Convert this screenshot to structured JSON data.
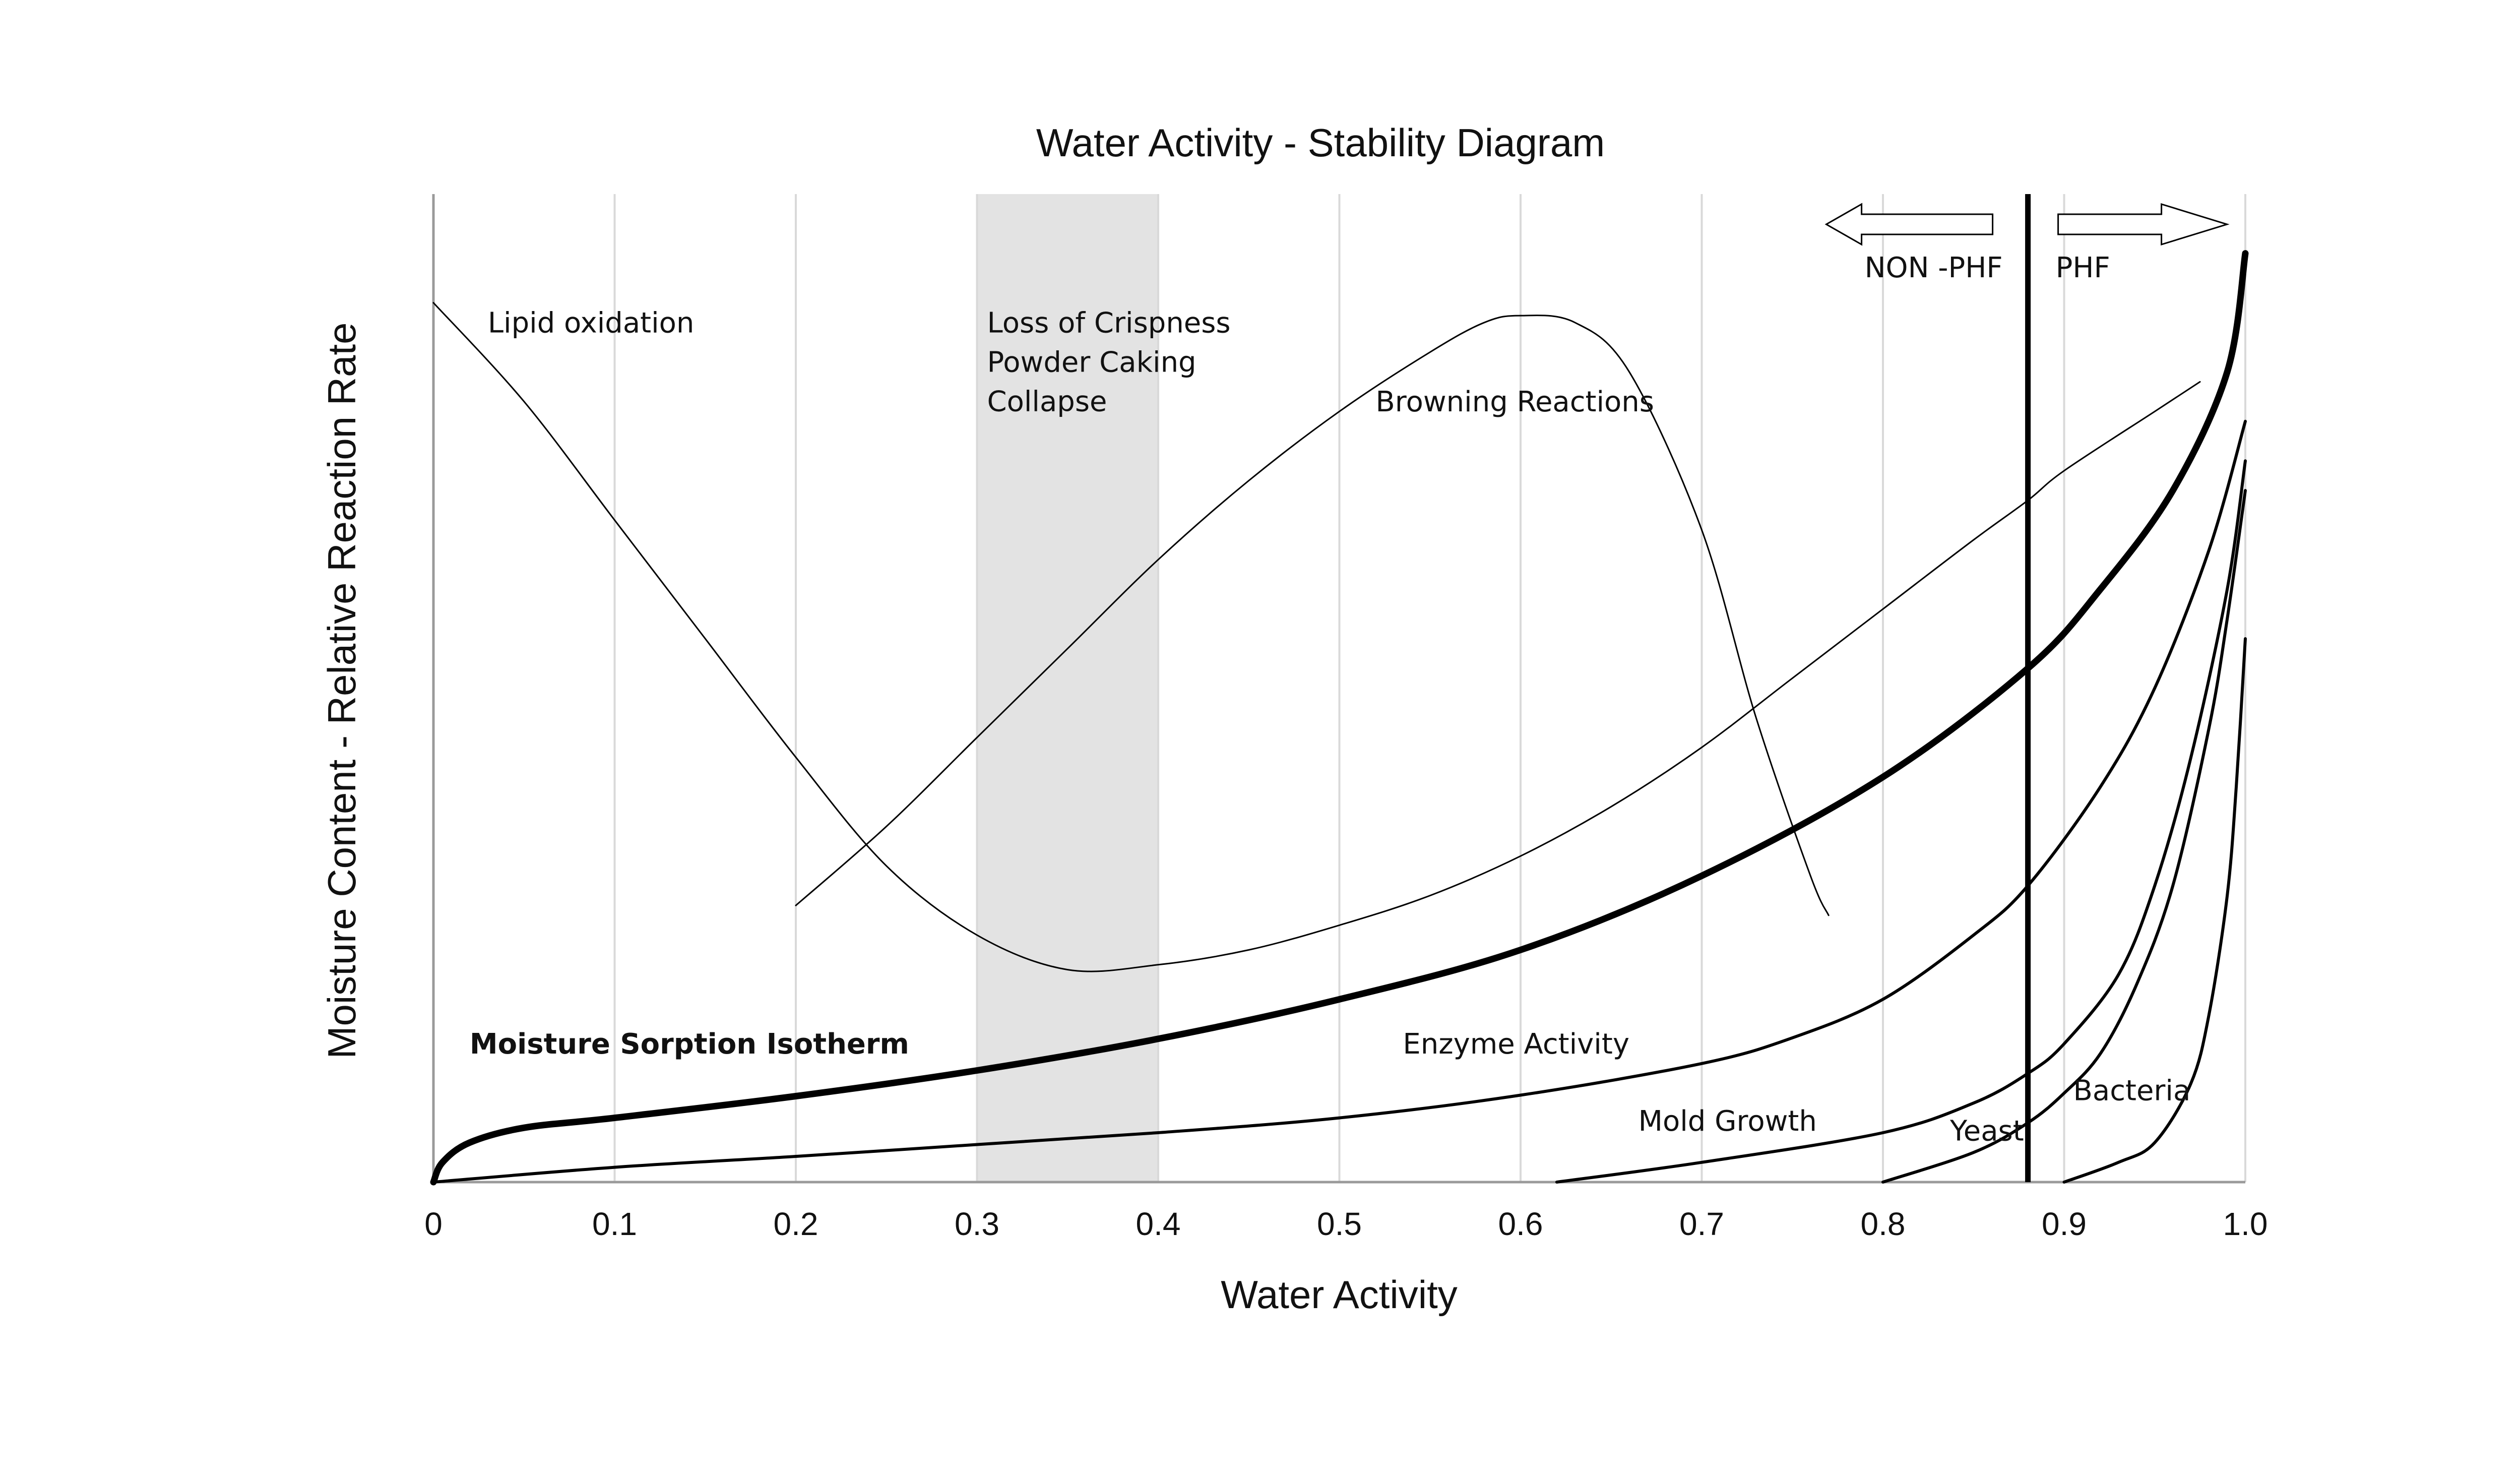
{
  "chart_data": {
    "type": "line",
    "title": "Water Activity - Stability Diagram",
    "xlabel": "Water Activity",
    "ylabel": "Moisture Content - Relative Reaction Rate",
    "xlim": [
      0,
      1.0
    ],
    "ylim": [
      0,
      1.0
    ],
    "x_ticks": [
      "0",
      "0.1",
      "0.2",
      "0.3",
      "0.4",
      "0.5",
      "0.6",
      "0.7",
      "0.8",
      "0.9",
      "1.0"
    ],
    "grid": "vertical",
    "shaded_band": {
      "x": [
        0.3,
        0.4
      ],
      "color": "#e3e3e3",
      "labels": [
        "Loss of Crispness",
        "Powder Caking",
        "Collapse"
      ]
    },
    "threshold": {
      "x": 0.88,
      "left_label": "NON -PHF",
      "right_label": "PHF"
    },
    "series": [
      {
        "name": "Lipid oxidation",
        "stroke": 3,
        "x": [
          0,
          0.05,
          0.1,
          0.15,
          0.2,
          0.25,
          0.3,
          0.35,
          0.4,
          0.45,
          0.5,
          0.55,
          0.6,
          0.65,
          0.7,
          0.75,
          0.8,
          0.85,
          0.88,
          0.9,
          0.95,
          0.975
        ],
        "y": [
          0.89,
          0.79,
          0.67,
          0.55,
          0.43,
          0.32,
          0.25,
          0.215,
          0.22,
          0.235,
          0.26,
          0.29,
          0.33,
          0.38,
          0.44,
          0.51,
          0.58,
          0.65,
          0.69,
          0.72,
          0.78,
          0.81
        ]
      },
      {
        "name": "Browning Reactions",
        "stroke": 3,
        "x": [
          0.2,
          0.25,
          0.3,
          0.35,
          0.4,
          0.45,
          0.5,
          0.55,
          0.58,
          0.6,
          0.63,
          0.66,
          0.7,
          0.73,
          0.76,
          0.77
        ],
        "y": [
          0.28,
          0.36,
          0.45,
          0.54,
          0.63,
          0.71,
          0.78,
          0.84,
          0.87,
          0.877,
          0.87,
          0.82,
          0.66,
          0.47,
          0.31,
          0.27
        ]
      },
      {
        "name": "Moisture Sorption Isotherm",
        "stroke": 13,
        "x": [
          0,
          0.005,
          0.02,
          0.05,
          0.1,
          0.2,
          0.3,
          0.4,
          0.5,
          0.6,
          0.7,
          0.8,
          0.88,
          0.92,
          0.96,
          0.99,
          1.0
        ],
        "y": [
          0,
          0.02,
          0.04,
          0.055,
          0.065,
          0.087,
          0.113,
          0.145,
          0.185,
          0.235,
          0.31,
          0.41,
          0.52,
          0.6,
          0.7,
          0.82,
          0.94
        ]
      },
      {
        "name": "Enzyme Activity",
        "stroke": 6,
        "x": [
          0,
          0.1,
          0.2,
          0.3,
          0.4,
          0.5,
          0.6,
          0.7,
          0.75,
          0.8,
          0.85,
          0.88,
          0.92,
          0.95,
          0.98,
          1.0
        ],
        "y": [
          0,
          0.015,
          0.026,
          0.038,
          0.05,
          0.065,
          0.088,
          0.12,
          0.146,
          0.185,
          0.25,
          0.3,
          0.4,
          0.5,
          0.64,
          0.77
        ]
      },
      {
        "name": "Mold Growth",
        "stroke": 6,
        "x": [
          0.62,
          0.7,
          0.8,
          0.85,
          0.88,
          0.9,
          0.93,
          0.95,
          0.97,
          0.99,
          1.0
        ],
        "y": [
          0,
          0.02,
          0.05,
          0.08,
          0.11,
          0.14,
          0.21,
          0.3,
          0.43,
          0.6,
          0.73
        ]
      },
      {
        "name": "Yeast",
        "stroke": 6,
        "x": [
          0.8,
          0.85,
          0.88,
          0.9,
          0.92,
          0.94,
          0.96,
          0.98,
          0.99,
          1.0
        ],
        "y": [
          0,
          0.03,
          0.06,
          0.09,
          0.13,
          0.2,
          0.3,
          0.46,
          0.57,
          0.7
        ]
      },
      {
        "name": "Bacteria",
        "stroke": 6,
        "x": [
          0.9,
          0.93,
          0.95,
          0.97,
          0.98,
          0.99,
          0.995,
          1.0
        ],
        "y": [
          0,
          0.02,
          0.04,
          0.1,
          0.17,
          0.29,
          0.4,
          0.55
        ]
      }
    ],
    "annotations": [
      {
        "text": "Lipid oxidation",
        "x": 0.03,
        "y": 0.86,
        "bold": false
      },
      {
        "text": "Browning Reactions",
        "x": 0.52,
        "y": 0.78,
        "bold": false
      },
      {
        "text": "Moisture Sorption Isotherm",
        "x": 0.02,
        "y": 0.13,
        "bold": true
      },
      {
        "text": "Enzyme Activity",
        "x": 0.535,
        "y": 0.13,
        "bold": false
      },
      {
        "text": "Mold Growth",
        "x": 0.665,
        "y": 0.052,
        "bold": false
      },
      {
        "text": "Yeast",
        "x": 0.837,
        "y": 0.042,
        "bold": false
      },
      {
        "text": "Bacteria",
        "x": 0.905,
        "y": 0.083,
        "bold": false
      }
    ]
  }
}
